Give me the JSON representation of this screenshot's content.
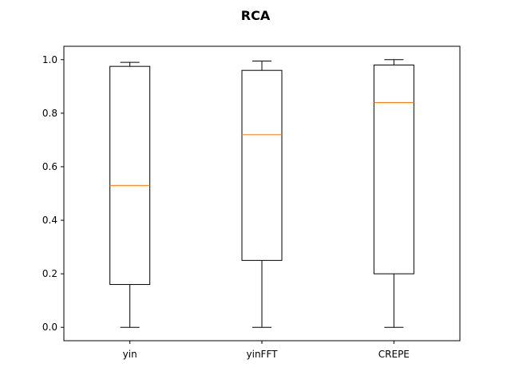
{
  "chart_data": {
    "type": "box",
    "title": "RCA",
    "xlabel": "",
    "ylabel": "",
    "categories": [
      "yin",
      "yinFFT",
      "CREPE"
    ],
    "boxes": [
      {
        "category": "yin",
        "whisker_low": 0.0,
        "q1": 0.16,
        "median": 0.53,
        "q3": 0.975,
        "whisker_high": 0.99
      },
      {
        "category": "yinFFT",
        "whisker_low": 0.0,
        "q1": 0.25,
        "median": 0.72,
        "q3": 0.96,
        "whisker_high": 0.995
      },
      {
        "category": "CREPE",
        "whisker_low": 0.0,
        "q1": 0.2,
        "median": 0.84,
        "q3": 0.98,
        "whisker_high": 1.0
      }
    ],
    "ylim": [
      -0.05,
      1.05
    ],
    "yticks": [
      "0.0",
      "0.2",
      "0.4",
      "0.6",
      "0.8",
      "1.0"
    ],
    "grid": false,
    "colors": {
      "box": "#000000",
      "median": "#ff7f0e"
    }
  }
}
